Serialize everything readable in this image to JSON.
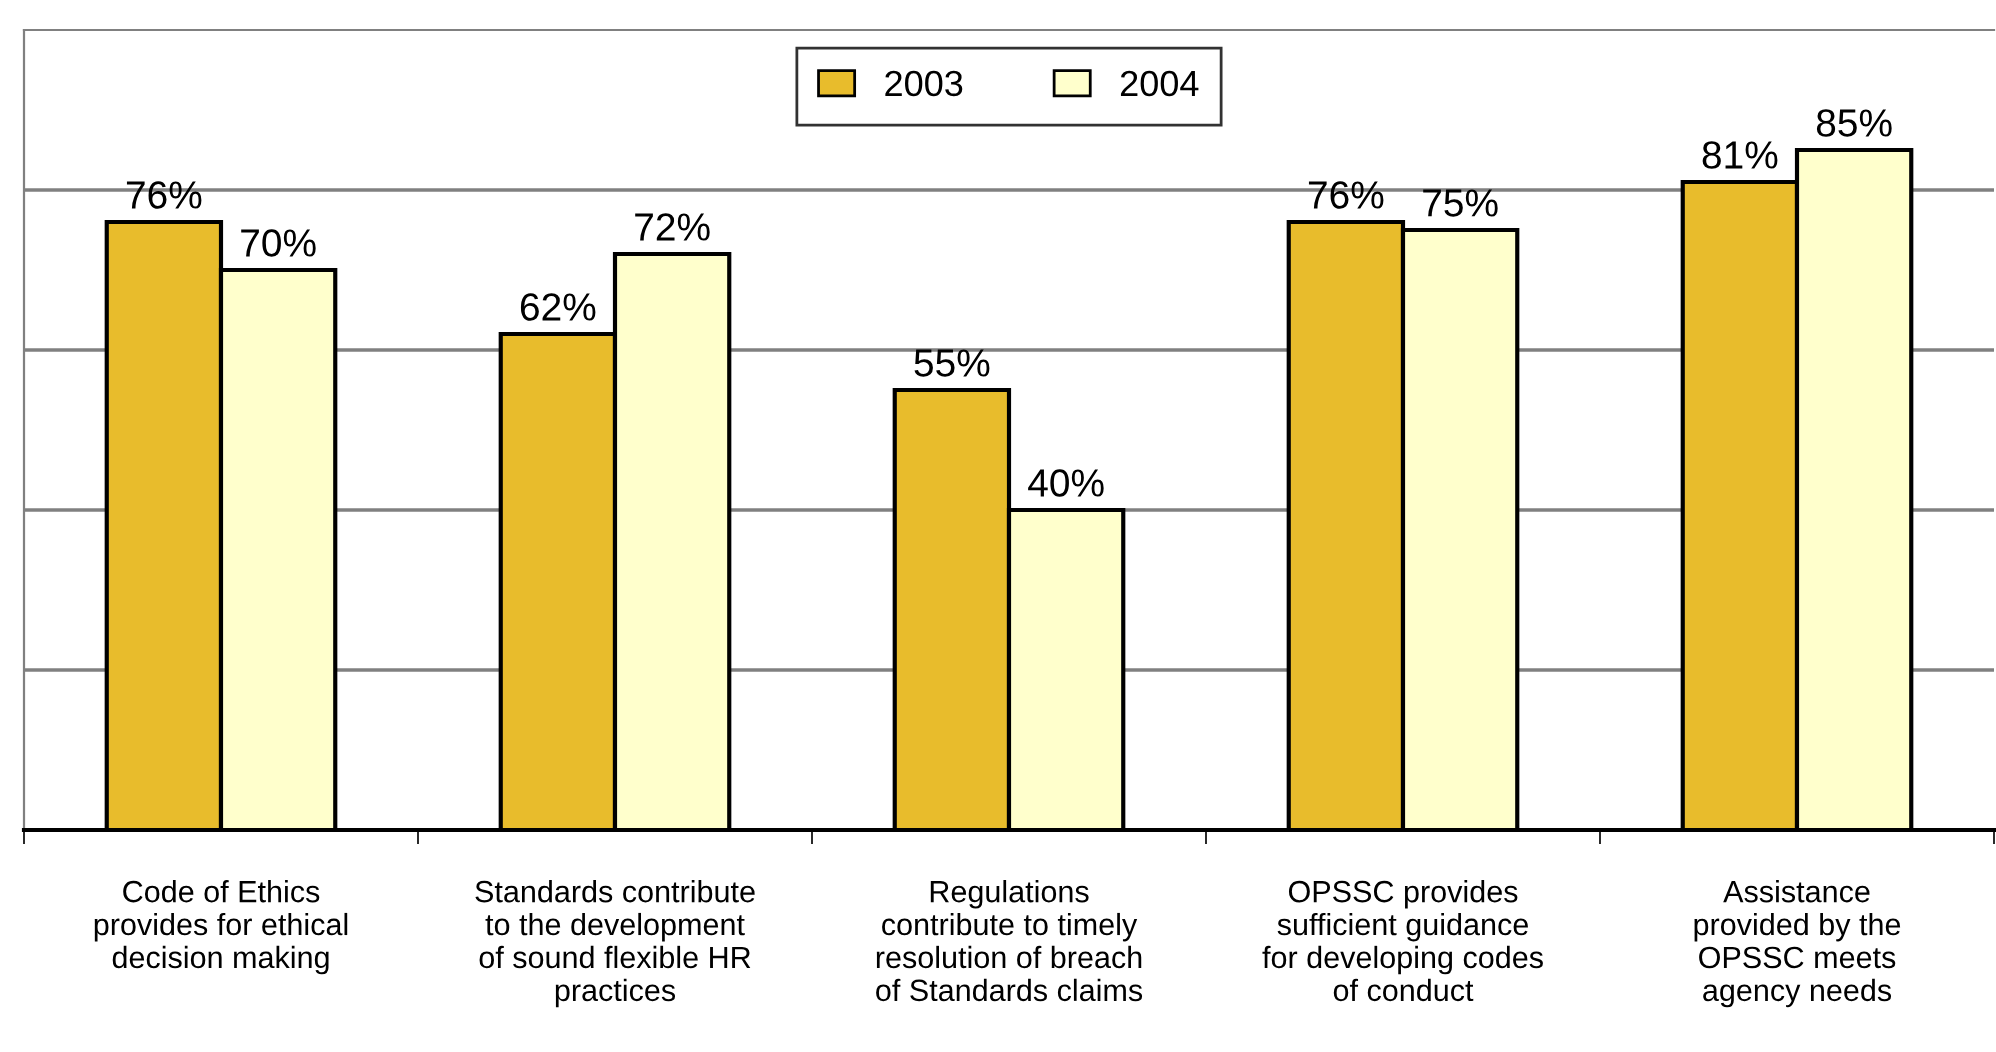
{
  "chart_data": {
    "type": "bar",
    "categories": [
      "Code of Ethics\nprovides for ethical\ndecision making",
      "Standards contribute\nto the development\nof sound flexible HR\npractices",
      "Regulations\ncontribute to timely\nresolution of breach\nof Standards claims",
      "OPSSC provides\nsufficient guidance\nfor developing codes\nof conduct",
      "Assistance\nprovided by the\nOPSSC meets\nagency needs"
    ],
    "series": [
      {
        "name": "2003",
        "color": "#e8bc2c",
        "values": [
          76,
          62,
          55,
          76,
          81
        ],
        "value_labels": [
          "76%",
          "62%",
          "55%",
          "76%",
          "81%"
        ]
      },
      {
        "name": "2004",
        "color": "#ffffcc",
        "values": [
          70,
          72,
          40,
          75,
          85
        ],
        "value_labels": [
          "70%",
          "72%",
          "40%",
          "75%",
          "85%"
        ]
      }
    ],
    "ylim": [
      0,
      100
    ],
    "yticks": [
      {
        "value": 20,
        "label": null
      },
      {
        "value": 40,
        "label": null
      },
      {
        "value": 60,
        "label": null
      },
      {
        "value": 80,
        "label": null
      }
    ],
    "grid": "y",
    "legend": "top",
    "tick_labels": "x"
  }
}
